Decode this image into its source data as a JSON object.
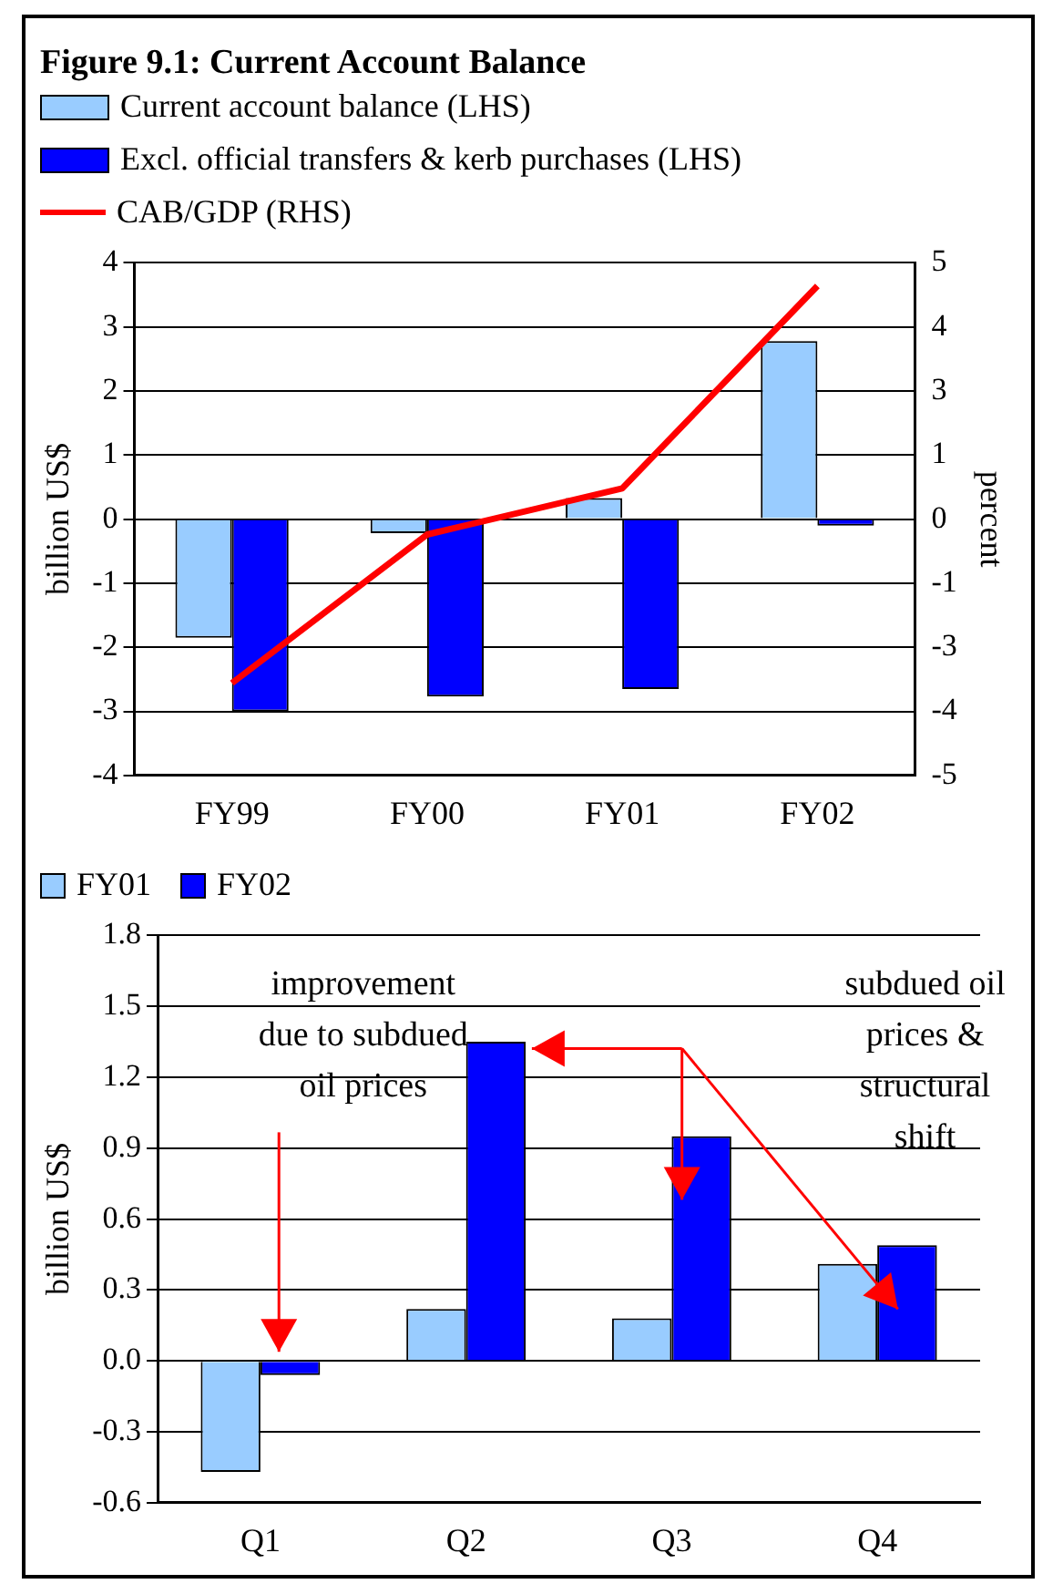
{
  "chart_data": [
    {
      "type": "bar",
      "title": "Figure 9.1: Current Account Balance",
      "ylabel": "billion US$",
      "y2label": "percent",
      "categories": [
        "FY99",
        "FY00",
        "FY01",
        "FY02"
      ],
      "series": [
        {
          "name": "Current account balance (LHS)",
          "color": "#99ccff",
          "values": [
            -1.85,
            -0.22,
            0.33,
            2.78
          ]
        },
        {
          "name": "Excl. official transfers & kerb purchases (LHS)",
          "color": "#0000ff",
          "values": [
            -3.0,
            -2.77,
            -2.65,
            -0.1
          ]
        },
        {
          "name": "CAB/GDP (RHS)",
          "type": "line",
          "axis": "y2",
          "color": "#ff0000",
          "marker": "none",
          "values": [
            -3.2,
            -0.3,
            0.6,
            4.55
          ]
        }
      ],
      "ylim": [
        -4,
        4
      ],
      "yticks": [
        -4,
        -3,
        -2,
        -1,
        0,
        1,
        2,
        3,
        4
      ],
      "y2lim": [
        -5,
        5
      ],
      "y2ticks": [
        -5,
        {
          "value": -3.75,
          "label": "-4"
        },
        {
          "value": -2.5,
          "label": "-3"
        },
        {
          "value": -1.25,
          "label": "-1"
        },
        0,
        {
          "value": 1.25,
          "label": "1"
        },
        {
          "value": 2.5,
          "label": "3"
        },
        {
          "value": 3.75,
          "label": "4"
        },
        5
      ],
      "grid": "y",
      "legend": "top left"
    },
    {
      "type": "bar",
      "ylabel": "billion US$",
      "categories": [
        "Q1",
        "Q2",
        "Q3",
        "Q4"
      ],
      "series": [
        {
          "name": "FY01",
          "color": "#99ccff",
          "values": [
            -0.47,
            0.22,
            0.18,
            0.41
          ]
        },
        {
          "name": "FY02",
          "color": "#0000ff",
          "values": [
            -0.06,
            1.35,
            0.95,
            0.49
          ]
        }
      ],
      "ylim": [
        -0.6,
        1.8
      ],
      "yticks": [
        {
          "value": -0.6,
          "label": "-0.6"
        },
        {
          "value": -0.3,
          "label": "-0.3"
        },
        {
          "value": 0,
          "label": "0.0"
        },
        {
          "value": 0.3,
          "label": "0.3"
        },
        {
          "value": 0.6,
          "label": "0.6"
        },
        {
          "value": 0.9,
          "label": "0.9"
        },
        {
          "value": 1.2,
          "label": "1.2"
        },
        {
          "value": 1.5,
          "label": "1.5"
        },
        {
          "value": 1.8,
          "label": "1.8"
        }
      ],
      "annotations": [
        "improvement due to subdued oil prices",
        "subdued oil prices & structural shift"
      ],
      "grid": "y",
      "legend": "top left"
    }
  ]
}
